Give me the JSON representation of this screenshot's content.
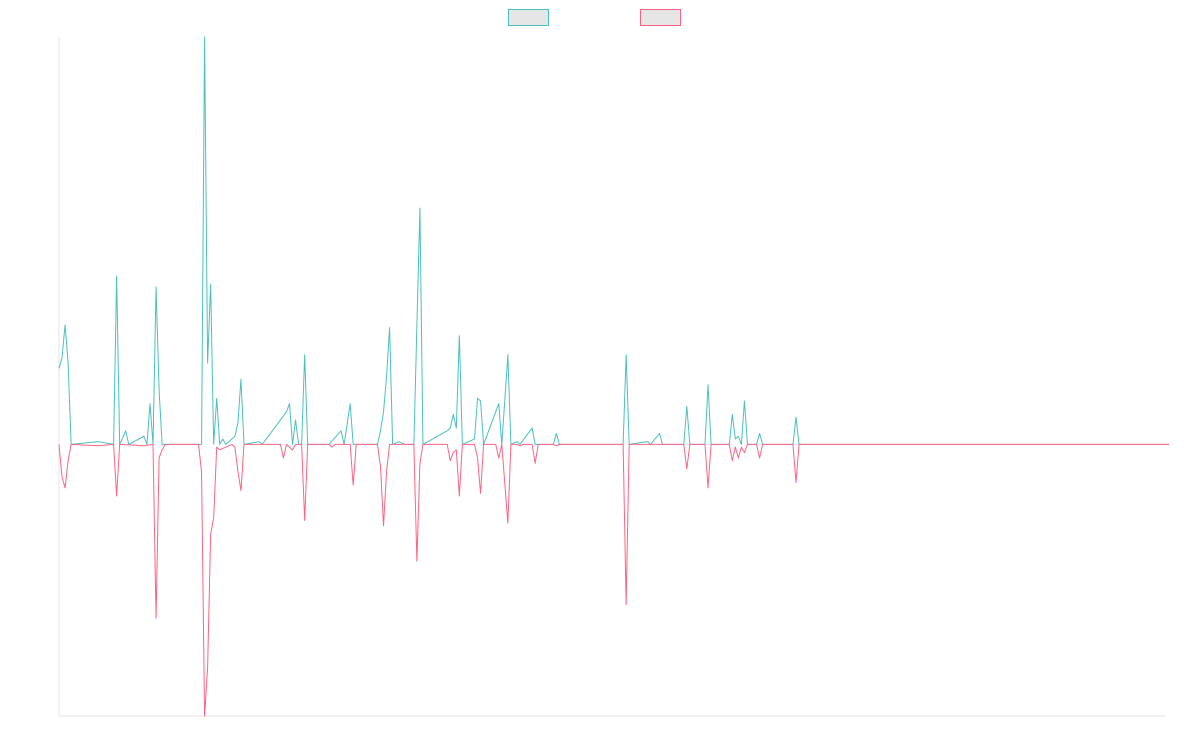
{
  "chart_data": {
    "type": "line",
    "title": "",
    "xlabel": "",
    "ylabel": "",
    "n_points": 366,
    "ylim": [
      -1.0,
      1.5
    ],
    "grid": false,
    "legend_position": "top-center",
    "series": [
      {
        "name": "",
        "color": "#4bc0c0",
        "fill": "#e6e6e6",
        "points": [
          [
            0,
            0.28
          ],
          [
            1,
            0.32
          ],
          [
            2,
            0.44
          ],
          [
            3,
            0.3
          ],
          [
            4,
            0
          ],
          [
            13,
            0.01
          ],
          [
            18,
            0
          ],
          [
            19,
            0.62
          ],
          [
            20,
            0
          ],
          [
            22,
            0.05
          ],
          [
            23,
            0
          ],
          [
            28,
            0.03
          ],
          [
            29,
            0
          ],
          [
            30,
            0.15
          ],
          [
            31,
            0
          ],
          [
            32,
            0.58
          ],
          [
            33,
            0.2
          ],
          [
            34,
            0
          ],
          [
            47,
            0
          ],
          [
            48,
            1.5
          ],
          [
            49,
            0.3
          ],
          [
            50,
            0.59
          ],
          [
            51,
            0
          ],
          [
            52,
            0.17
          ],
          [
            53,
            0
          ],
          [
            54,
            0.02
          ],
          [
            55,
            0
          ],
          [
            57,
            0.02
          ],
          [
            58,
            0.03
          ],
          [
            59,
            0.08
          ],
          [
            60,
            0.24
          ],
          [
            61,
            0
          ],
          [
            66,
            0.01
          ],
          [
            67,
            0
          ],
          [
            75,
            0.12
          ],
          [
            76,
            0.15
          ],
          [
            77,
            0
          ],
          [
            78,
            0.09
          ],
          [
            79,
            0
          ],
          [
            80,
            0
          ],
          [
            81,
            0.33
          ],
          [
            82,
            0
          ],
          [
            89,
            0
          ],
          [
            93,
            0.05
          ],
          [
            94,
            0
          ],
          [
            96,
            0.15
          ],
          [
            97,
            0
          ],
          [
            105,
            0
          ],
          [
            106,
            0.05
          ],
          [
            107,
            0.12
          ],
          [
            108,
            0.25
          ],
          [
            109,
            0.43
          ],
          [
            110,
            0
          ],
          [
            112,
            0.01
          ],
          [
            114,
            0
          ],
          [
            117,
            0
          ],
          [
            119,
            0.87
          ],
          [
            120,
            0
          ],
          [
            128,
            0.05
          ],
          [
            129,
            0.06
          ],
          [
            130,
            0.11
          ],
          [
            131,
            0.06
          ],
          [
            132,
            0.4
          ],
          [
            133,
            0
          ],
          [
            137,
            0.02
          ],
          [
            138,
            0.17
          ],
          [
            139,
            0.16
          ],
          [
            140,
            0
          ],
          [
            145,
            0.15
          ],
          [
            146,
            0
          ],
          [
            148,
            0.33
          ],
          [
            149,
            0
          ],
          [
            151,
            0.01
          ],
          [
            152,
            0
          ],
          [
            156,
            0.06
          ],
          [
            157,
            0
          ],
          [
            163,
            0
          ],
          [
            164,
            0.04
          ],
          [
            165,
            0
          ],
          [
            186,
            0
          ],
          [
            187,
            0.33
          ],
          [
            188,
            0
          ],
          [
            194,
            0.01
          ],
          [
            195,
            0
          ],
          [
            198,
            0.04
          ],
          [
            199,
            0
          ],
          [
            206,
            0
          ],
          [
            207,
            0.14
          ],
          [
            208,
            0
          ],
          [
            213,
            0
          ],
          [
            214,
            0.22
          ],
          [
            215,
            0
          ],
          [
            221,
            0
          ],
          [
            222,
            0.11
          ],
          [
            223,
            0.02
          ],
          [
            224,
            0.03
          ],
          [
            225,
            0
          ],
          [
            226,
            0.16
          ],
          [
            227,
            0
          ],
          [
            230,
            0
          ],
          [
            231,
            0.04
          ],
          [
            232,
            0
          ],
          [
            242,
            0
          ],
          [
            243,
            0.1
          ],
          [
            244,
            0
          ],
          [
            366,
            0
          ]
        ]
      },
      {
        "name": "",
        "color": "#ff6384",
        "fill": "#e6e6e6",
        "points": [
          [
            0,
            0
          ],
          [
            1,
            -0.12
          ],
          [
            2,
            -0.16
          ],
          [
            3,
            -0.06
          ],
          [
            4,
            0
          ],
          [
            13,
            -0.005
          ],
          [
            18,
            0
          ],
          [
            19,
            -0.19
          ],
          [
            20,
            0
          ],
          [
            28,
            -0.005
          ],
          [
            31,
            0
          ],
          [
            32,
            -0.64
          ],
          [
            33,
            -0.05
          ],
          [
            34,
            -0.02
          ],
          [
            35,
            0
          ],
          [
            46,
            0
          ],
          [
            47,
            -0.1
          ],
          [
            48,
            -1.0
          ],
          [
            49,
            -0.82
          ],
          [
            50,
            -0.33
          ],
          [
            51,
            -0.27
          ],
          [
            52,
            -0.01
          ],
          [
            53,
            -0.02
          ],
          [
            57,
            0
          ],
          [
            58,
            -0.01
          ],
          [
            59,
            -0.1
          ],
          [
            60,
            -0.17
          ],
          [
            61,
            0
          ],
          [
            73,
            0
          ],
          [
            74,
            -0.05
          ],
          [
            75,
            0
          ],
          [
            77,
            -0.02
          ],
          [
            78,
            0
          ],
          [
            80,
            0
          ],
          [
            81,
            -0.28
          ],
          [
            82,
            0
          ],
          [
            89,
            0
          ],
          [
            90,
            -0.01
          ],
          [
            91,
            0
          ],
          [
            96,
            0
          ],
          [
            97,
            -0.15
          ],
          [
            98,
            0
          ],
          [
            105,
            0
          ],
          [
            106,
            -0.08
          ],
          [
            107,
            -0.3
          ],
          [
            108,
            -0.1
          ],
          [
            109,
            0
          ],
          [
            117,
            0
          ],
          [
            118,
            -0.43
          ],
          [
            119,
            -0.07
          ],
          [
            120,
            0
          ],
          [
            128,
            0
          ],
          [
            129,
            -0.06
          ],
          [
            130,
            -0.03
          ],
          [
            131,
            -0.02
          ],
          [
            132,
            -0.19
          ],
          [
            133,
            0
          ],
          [
            137,
            0
          ],
          [
            138,
            -0.05
          ],
          [
            139,
            -0.18
          ],
          [
            140,
            0
          ],
          [
            144,
            0
          ],
          [
            145,
            -0.05
          ],
          [
            146,
            0
          ],
          [
            148,
            -0.29
          ],
          [
            149,
            0
          ],
          [
            151,
            0
          ],
          [
            152,
            -0.005
          ],
          [
            153,
            0
          ],
          [
            156,
            0
          ],
          [
            157,
            -0.07
          ],
          [
            158,
            0
          ],
          [
            163,
            0
          ],
          [
            164,
            -0.005
          ],
          [
            165,
            0
          ],
          [
            186,
            0
          ],
          [
            187,
            -0.59
          ],
          [
            188,
            0
          ],
          [
            206,
            0
          ],
          [
            207,
            -0.09
          ],
          [
            208,
            0
          ],
          [
            213,
            0
          ],
          [
            214,
            -0.16
          ],
          [
            215,
            0
          ],
          [
            221,
            0
          ],
          [
            222,
            -0.06
          ],
          [
            223,
            -0.01
          ],
          [
            224,
            -0.05
          ],
          [
            225,
            -0.01
          ],
          [
            226,
            -0.03
          ],
          [
            227,
            0
          ],
          [
            230,
            0
          ],
          [
            231,
            -0.05
          ],
          [
            232,
            0
          ],
          [
            242,
            0
          ],
          [
            243,
            -0.14
          ],
          [
            244,
            0
          ],
          [
            366,
            0
          ]
        ]
      }
    ]
  }
}
